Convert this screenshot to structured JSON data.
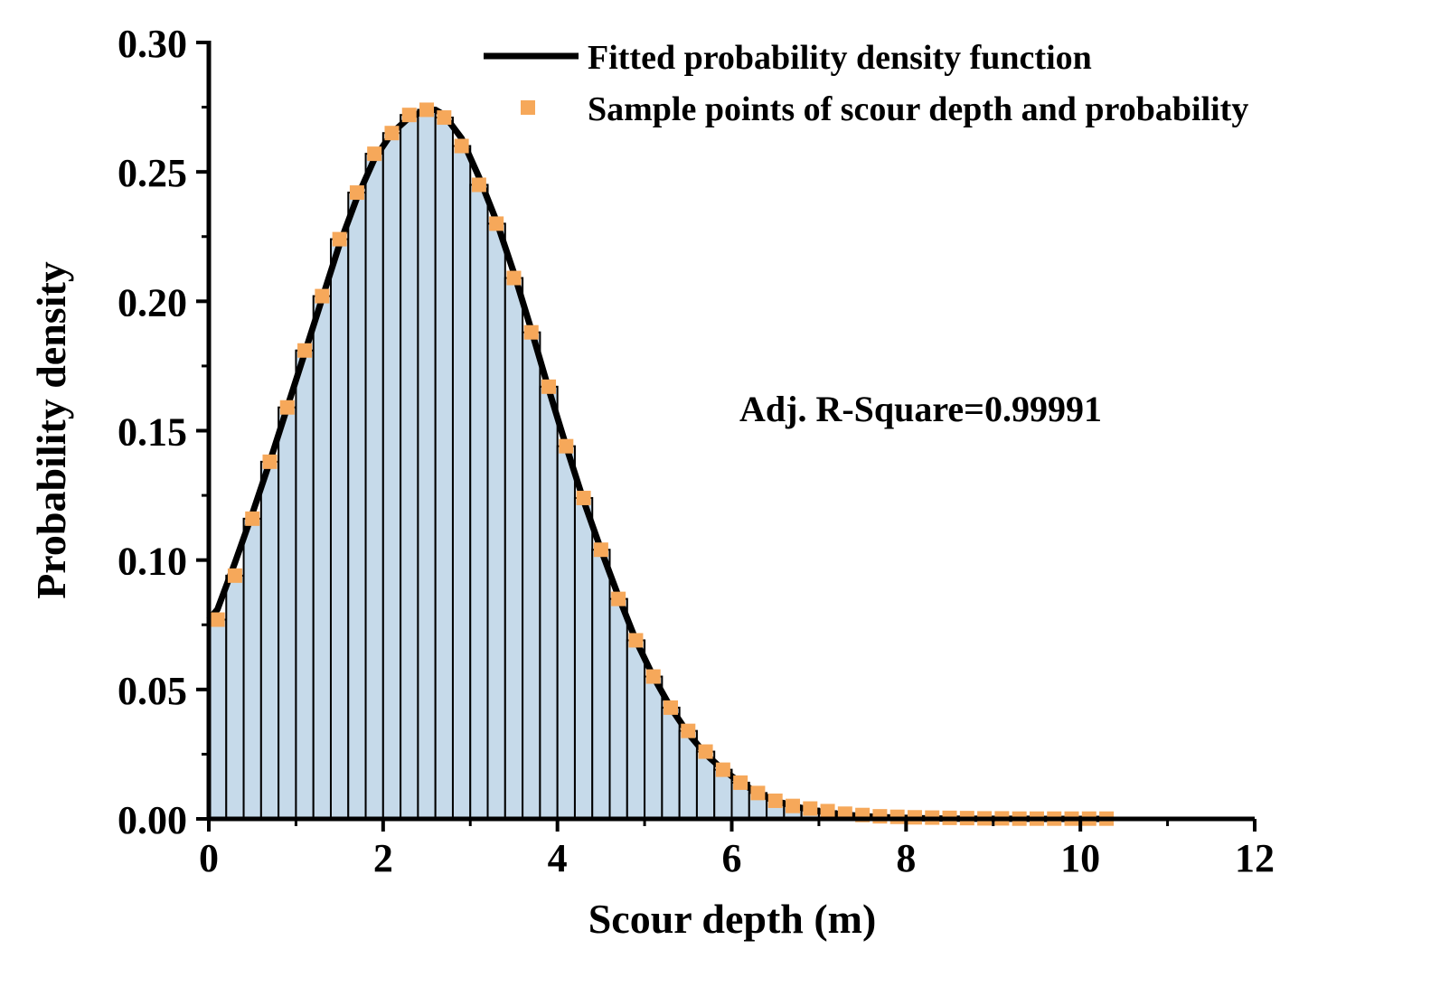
{
  "chart_data": {
    "type": "bar",
    "xlabel": "Scour depth (m)",
    "ylabel": "Probability density",
    "xlim": [
      0,
      12
    ],
    "ylim": [
      0,
      0.3
    ],
    "x_ticks": [
      0,
      2,
      4,
      6,
      8,
      10,
      12
    ],
    "y_ticks": [
      0.0,
      0.05,
      0.1,
      0.15,
      0.2,
      0.25,
      0.3
    ],
    "x_tick_labels": [
      "0",
      "2",
      "4",
      "6",
      "8",
      "10",
      "12"
    ],
    "y_tick_labels": [
      "0.00",
      "0.05",
      "0.10",
      "0.15",
      "0.20",
      "0.25",
      "0.30"
    ],
    "annotation": "Adj. R-Square=0.99991",
    "legend_position": "top-right",
    "grid": false,
    "colors": {
      "bars_fill": "#c6daea",
      "bars_stroke": "#000000",
      "fit_line": "#000000",
      "points": "#f6a85a"
    },
    "series": [
      {
        "name": "Sample points of scour depth and probability",
        "kind": "histogram+scatter",
        "x": [
          0.1,
          0.3,
          0.5,
          0.7,
          0.9,
          1.1,
          1.3,
          1.5,
          1.7,
          1.9,
          2.1,
          2.3,
          2.5,
          2.7,
          2.9,
          3.1,
          3.3,
          3.5,
          3.7,
          3.9,
          4.1,
          4.3,
          4.5,
          4.7,
          4.9,
          5.1,
          5.3,
          5.5,
          5.7,
          5.9,
          6.1,
          6.3,
          6.5,
          6.7,
          6.9,
          7.1,
          7.3,
          7.5,
          7.7,
          7.9,
          8.1,
          8.3,
          8.5,
          8.7,
          8.9,
          9.1,
          9.3,
          9.5,
          9.7,
          9.9,
          10.1,
          10.3
        ],
        "values": [
          0.077,
          0.094,
          0.116,
          0.138,
          0.159,
          0.181,
          0.202,
          0.224,
          0.242,
          0.257,
          0.265,
          0.272,
          0.274,
          0.271,
          0.26,
          0.245,
          0.23,
          0.209,
          0.188,
          0.167,
          0.144,
          0.124,
          0.104,
          0.085,
          0.069,
          0.055,
          0.043,
          0.034,
          0.026,
          0.019,
          0.014,
          0.01,
          0.007,
          0.005,
          0.004,
          0.003,
          0.002,
          0.0015,
          0.001,
          0.0008,
          0.0006,
          0.0005,
          0.0004,
          0.0003,
          0.0002,
          0.0002,
          0.0001,
          0.0001,
          0.0001,
          0.0001,
          0.0001,
          0.0001
        ]
      },
      {
        "name": "Fitted probability density function",
        "kind": "line",
        "x": [
          0.0,
          0.1,
          0.3,
          0.5,
          0.7,
          0.9,
          1.1,
          1.3,
          1.5,
          1.7,
          1.9,
          2.1,
          2.3,
          2.5,
          2.6,
          2.7,
          2.9,
          3.1,
          3.3,
          3.5,
          3.7,
          3.9,
          4.1,
          4.3,
          4.5,
          4.7,
          4.9,
          5.1,
          5.3,
          5.5,
          5.7,
          5.9,
          6.1,
          6.3,
          6.5,
          6.7,
          6.9,
          7.1,
          7.3,
          7.5,
          7.7,
          7.9,
          8.1,
          8.5,
          9.0,
          9.5,
          10.0,
          10.3
        ],
        "values": [
          0.077,
          0.081,
          0.099,
          0.118,
          0.138,
          0.159,
          0.18,
          0.201,
          0.222,
          0.24,
          0.255,
          0.265,
          0.271,
          0.274,
          0.274,
          0.272,
          0.263,
          0.248,
          0.231,
          0.211,
          0.189,
          0.166,
          0.144,
          0.123,
          0.104,
          0.086,
          0.069,
          0.055,
          0.043,
          0.033,
          0.025,
          0.019,
          0.014,
          0.01,
          0.007,
          0.005,
          0.0035,
          0.0024,
          0.0016,
          0.0011,
          0.0007,
          0.0005,
          0.0003,
          0.0001,
          5e-05,
          2e-05,
          1e-05,
          0.0
        ]
      }
    ]
  }
}
